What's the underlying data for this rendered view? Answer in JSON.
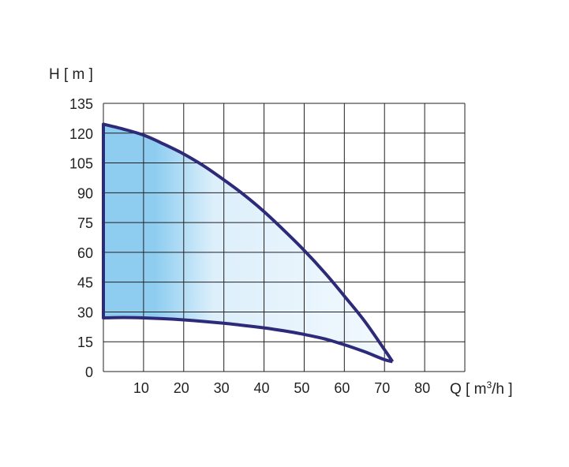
{
  "chart_data": {
    "type": "area",
    "title": "",
    "xlabel": "Q [ m³/h ]",
    "ylabel": "H [ m ]",
    "xlim": [
      0,
      90
    ],
    "ylim": [
      0,
      135
    ],
    "x_ticks": [
      10,
      20,
      30,
      40,
      50,
      60,
      70,
      80
    ],
    "y_ticks": [
      0,
      15,
      30,
      45,
      60,
      75,
      90,
      105,
      120,
      135
    ],
    "grid": true,
    "series": [
      {
        "role": "upper-boundary",
        "x": [
          0,
          5,
          10,
          15,
          20,
          25,
          30,
          35,
          40,
          45,
          50,
          55,
          60,
          65,
          70,
          72
        ],
        "y": [
          124.5,
          122,
          119,
          114.5,
          109.5,
          103.5,
          96.5,
          89,
          80.5,
          71,
          61,
          50,
          38,
          25.5,
          11,
          5
        ]
      },
      {
        "role": "lower-boundary",
        "x": [
          0,
          5,
          10,
          15,
          20,
          25,
          30,
          35,
          40,
          45,
          50,
          55,
          60,
          65,
          70,
          72
        ],
        "y": [
          27,
          27.2,
          27,
          26.6,
          26,
          25.2,
          24.3,
          23.2,
          22,
          20.5,
          18.7,
          16.5,
          13.5,
          10,
          6,
          5
        ]
      }
    ],
    "colors": {
      "boundary": "#2e2a7a",
      "fill_dark": "#8ecdf0",
      "fill_light": "#f3f9fe",
      "grid": "#231f20",
      "text": "#231f20"
    }
  }
}
